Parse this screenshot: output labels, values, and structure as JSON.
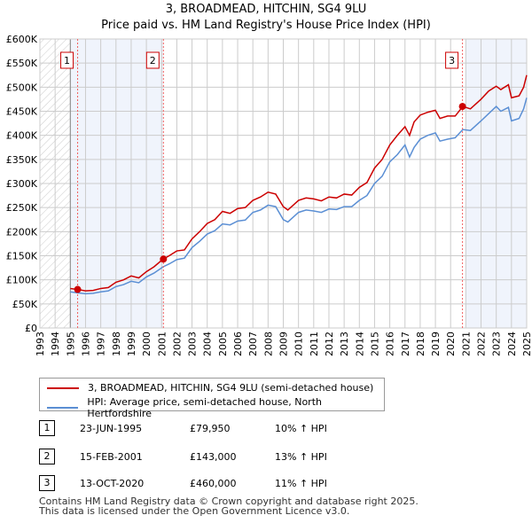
{
  "title": "3, BROADMEAD, HITCHIN, SG4 9LU",
  "subtitle": "Price paid vs. HM Land Registry's House Price Index (HPI)",
  "chart_data": {
    "type": "line",
    "xlim": [
      1993,
      2025
    ],
    "ylim": [
      0,
      600000
    ],
    "x_ticks": [
      "1993",
      "1994",
      "1995",
      "1996",
      "1997",
      "1998",
      "1999",
      "2000",
      "2001",
      "2002",
      "2003",
      "2004",
      "2005",
      "2006",
      "2007",
      "2008",
      "2009",
      "2010",
      "2011",
      "2012",
      "2013",
      "2014",
      "2015",
      "2016",
      "2017",
      "2018",
      "2019",
      "2020",
      "2021",
      "2022",
      "2023",
      "2024",
      "2025"
    ],
    "y_ticks": [
      {
        "v": 0,
        "l": "£0"
      },
      {
        "v": 50000,
        "l": "£50K"
      },
      {
        "v": 100000,
        "l": "£100K"
      },
      {
        "v": 150000,
        "l": "£150K"
      },
      {
        "v": 200000,
        "l": "£200K"
      },
      {
        "v": 250000,
        "l": "£250K"
      },
      {
        "v": 300000,
        "l": "£300K"
      },
      {
        "v": 350000,
        "l": "£350K"
      },
      {
        "v": 400000,
        "l": "£400K"
      },
      {
        "v": 450000,
        "l": "£450K"
      },
      {
        "v": 500000,
        "l": "£500K"
      },
      {
        "v": 550000,
        "l": "£550K"
      },
      {
        "v": 600000,
        "l": "£600K"
      }
    ],
    "series": [
      {
        "name": "3, BROADMEAD, HITCHIN, SG4 9LU (semi-detached house)",
        "color": "#cc0000",
        "x": [
          1995,
          1995.5,
          1996,
          1996.5,
          1997,
          1997.5,
          1998,
          1998.5,
          1999,
          1999.5,
          2000,
          2000.5,
          2001.1,
          2001.5,
          2002,
          2002.5,
          2003,
          2003.5,
          2004,
          2004.5,
          2005,
          2005.5,
          2006,
          2006.5,
          2007,
          2007.5,
          2008,
          2008.5,
          2009,
          2009.3,
          2010,
          2010.5,
          2011,
          2011.5,
          2012,
          2012.5,
          2013,
          2013.5,
          2014,
          2014.5,
          2015,
          2015.5,
          2016,
          2016.5,
          2017,
          2017.3,
          2017.6,
          2018,
          2018.5,
          2019,
          2019.3,
          2019.8,
          2020.3,
          2020.8,
          2021.3,
          2022,
          2022.5,
          2023,
          2023.3,
          2023.8,
          2024,
          2024.5,
          2024.8,
          2025
        ],
        "y": [
          82000,
          79950,
          77000,
          78000,
          82000,
          84000,
          95000,
          100000,
          108000,
          104000,
          117000,
          127000,
          143000,
          150000,
          160000,
          162000,
          185000,
          200000,
          217000,
          225000,
          242000,
          238000,
          248000,
          250000,
          265000,
          272000,
          282000,
          278000,
          252000,
          245000,
          265000,
          270000,
          268000,
          264000,
          272000,
          270000,
          278000,
          276000,
          292000,
          302000,
          332000,
          350000,
          380000,
          400000,
          418000,
          400000,
          428000,
          442000,
          448000,
          452000,
          435000,
          440000,
          440000,
          460000,
          455000,
          475000,
          492000,
          502000,
          495000,
          505000,
          478000,
          482000,
          500000,
          525000
        ]
      },
      {
        "name": "HPI: Average price, semi-detached house, North Hertfordshire",
        "color": "#5b8fd4",
        "x": [
          1995,
          1995.5,
          1996,
          1996.5,
          1997,
          1997.5,
          1998,
          1998.5,
          1999,
          1999.5,
          2000,
          2000.5,
          2001.1,
          2001.5,
          2002,
          2002.5,
          2003,
          2003.5,
          2004,
          2004.5,
          2005,
          2005.5,
          2006,
          2006.5,
          2007,
          2007.5,
          2008,
          2008.5,
          2009,
          2009.3,
          2010,
          2010.5,
          2011,
          2011.5,
          2012,
          2012.5,
          2013,
          2013.5,
          2014,
          2014.5,
          2015,
          2015.5,
          2016,
          2016.5,
          2017,
          2017.3,
          2017.6,
          2018,
          2018.5,
          2019,
          2019.3,
          2019.8,
          2020.3,
          2020.8,
          2021.3,
          2022,
          2022.5,
          2023,
          2023.3,
          2023.8,
          2024,
          2024.5,
          2024.8,
          2025
        ],
        "y": [
          75000,
          73000,
          71000,
          72000,
          75000,
          77000,
          86000,
          90000,
          97000,
          94000,
          106000,
          114000,
          127000,
          133000,
          142000,
          145000,
          167000,
          180000,
          195000,
          202000,
          216000,
          214000,
          222000,
          224000,
          240000,
          245000,
          255000,
          252000,
          225000,
          220000,
          240000,
          245000,
          243000,
          240000,
          247000,
          246000,
          252000,
          252000,
          265000,
          275000,
          300000,
          315000,
          345000,
          360000,
          380000,
          355000,
          375000,
          392000,
          400000,
          405000,
          388000,
          392000,
          395000,
          412000,
          410000,
          430000,
          445000,
          460000,
          450000,
          458000,
          430000,
          435000,
          455000,
          478000
        ]
      }
    ],
    "sales": [
      {
        "n": "1",
        "date": "23-JUN-1995",
        "x": 1995.48,
        "price": "£79,950",
        "v": 79950,
        "hpi": "10% ↑ HPI"
      },
      {
        "n": "2",
        "date": "15-FEB-2001",
        "x": 2001.12,
        "price": "£143,000",
        "v": 143000,
        "hpi": "13% ↑ HPI"
      },
      {
        "n": "3",
        "date": "13-OCT-2020",
        "x": 2020.78,
        "price": "£460,000",
        "v": 460000,
        "hpi": "11% ↑ HPI"
      }
    ]
  },
  "footer": [
    "Contains HM Land Registry data © Crown copyright and database right 2025.",
    "This data is licensed under the Open Government Licence v3.0."
  ]
}
